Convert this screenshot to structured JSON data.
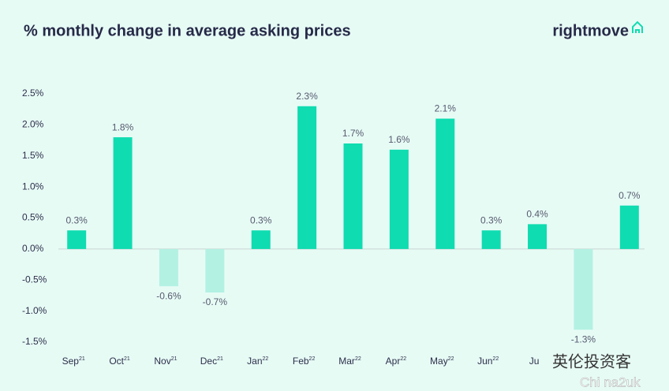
{
  "chart_data": {
    "type": "bar",
    "title": "% monthly change in average asking prices",
    "brand": "rightmove",
    "categories": [
      "Sep",
      "Oct",
      "Nov",
      "Dec",
      "Jan",
      "Feb",
      "Mar",
      "Apr",
      "May",
      "Jun",
      "Ju",
      null,
      null
    ],
    "category_superscripts": [
      "21",
      "21",
      "21",
      "21",
      "22",
      "22",
      "22",
      "22",
      "22",
      "22",
      null,
      null,
      null
    ],
    "values": [
      0.3,
      1.8,
      -0.6,
      -0.7,
      0.3,
      2.3,
      1.7,
      1.6,
      2.1,
      0.3,
      0.4,
      -1.3,
      0.7
    ],
    "value_labels": [
      "0.3%",
      "1.8%",
      "-0.6%",
      "-0.7%",
      "0.3%",
      "2.3%",
      "1.7%",
      "1.6%",
      "2.1%",
      "0.3%",
      "0.4%",
      "-1.3%",
      "0.7%"
    ],
    "color": "#0fdcb0",
    "negative_color": "#b3f1e3",
    "ylim": [
      -1.5,
      2.5
    ],
    "yticks": [
      {
        "value": 2.5,
        "label": "2.5%"
      },
      {
        "value": 2,
        "label": "2.0%"
      },
      {
        "value": 1.5,
        "label": "1.5%"
      },
      {
        "value": 1,
        "label": "1.0%"
      },
      {
        "value": 0.5,
        "label": "0.5%"
      },
      {
        "value": 0,
        "label": "0.0%"
      },
      {
        "value": -0.5,
        "label": "-0.5%"
      },
      {
        "value": -1,
        "label": "-1.0%"
      },
      {
        "value": -1.5,
        "label": "-1.5%"
      }
    ],
    "grid": false,
    "watermark": [
      "英伦投资客",
      "Chi na2uk"
    ]
  }
}
